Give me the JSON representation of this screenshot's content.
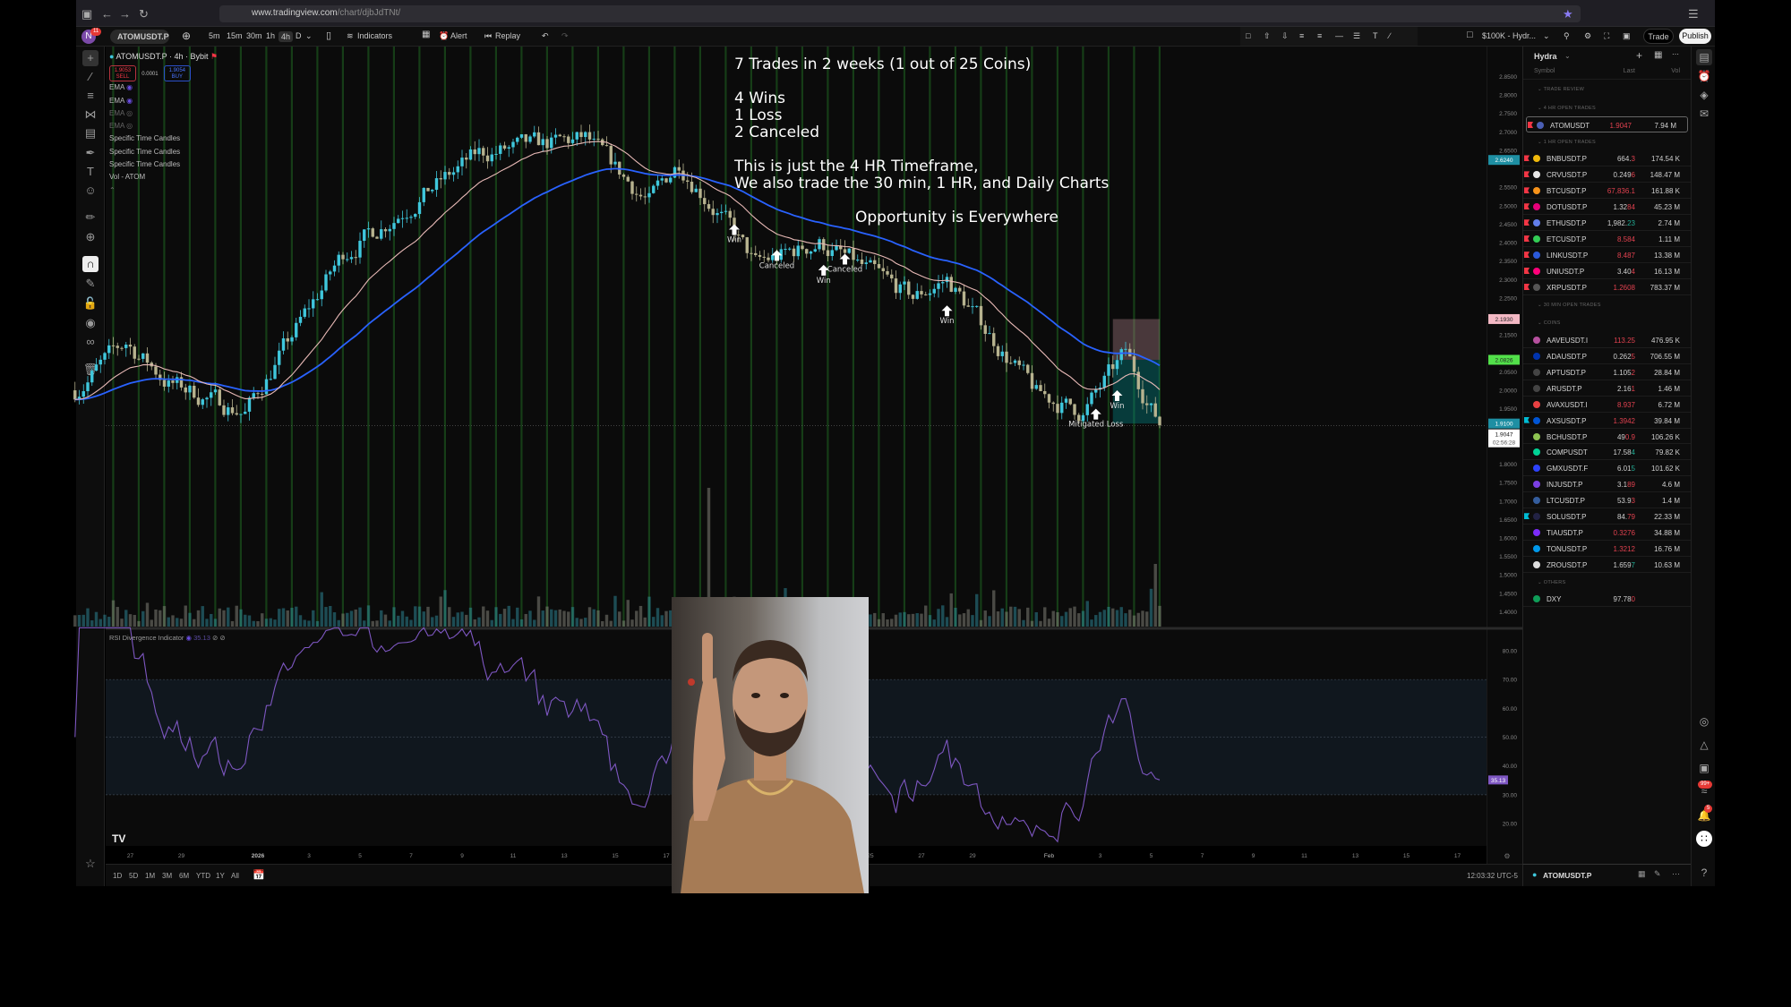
{
  "browser": {
    "url_domain": "www.tradingview.com",
    "url_path": "/chart/djbJdTNt/"
  },
  "toolbar": {
    "avatar_letter": "N",
    "avatar_badge": "11",
    "symbol": "ATOMUSDT.P",
    "timeframes": [
      "5m",
      "15m",
      "30m",
      "1h",
      "4h",
      "D"
    ],
    "active_timeframe": "4h",
    "indicators_label": "Indicators",
    "alert_label": "Alert",
    "replay_label": "Replay",
    "account_label": "$100K - Hydr...",
    "trade_label": "Trade",
    "publish_label": "Publish"
  },
  "legend": {
    "title": "ATOMUSDT.P · 4h · Bybit",
    "sell_price": "1.9053",
    "sell_label": "SELL",
    "spread": "0.0001",
    "buy_price": "1.9054",
    "buy_label": "BUY",
    "indicators": [
      "EMA",
      "EMA",
      "EMA",
      "EMA",
      "Specific Time Candles",
      "Specific Time Candles",
      "Specific Time Candles",
      "Vol - ATOM"
    ]
  },
  "annotations": {
    "line1": "7 Trades in 2 weeks (1 out of 25 Coins)",
    "line2": "4 Wins",
    "line3": "1 Loss",
    "line4": "2 Canceled",
    "line5": "This is just the 4 HR Timeframe,",
    "line6": "We also trade the 30 min, 1 HR, and Daily Charts",
    "line7": "Opportunity is Everywhere"
  },
  "chart_data": {
    "type": "candlestick",
    "symbol": "ATOMUSDT.P",
    "interval": "4h",
    "price_axis": {
      "min": 1.4,
      "max": 2.85,
      "step": 0.05
    },
    "price_path": [
      [
        "2025-12-24T20:00",
        2.0
      ],
      [
        "2025-12-26T20:00",
        2.13
      ],
      [
        "2025-12-28T12:00",
        2.02
      ],
      [
        "2025-12-31T12:00",
        1.94
      ],
      [
        "2026-01-04T08:00",
        2.37
      ],
      [
        "2026-01-09T16:00",
        2.64
      ],
      [
        "2026-01-13T20:00",
        2.68
      ],
      [
        "2026-01-16T08:00",
        2.51
      ],
      [
        "2026-01-17T12:00",
        2.62
      ],
      [
        "2026-01-19T12:00",
        2.44
      ],
      [
        "2026-01-20T12:00",
        2.34
      ],
      [
        "2026-01-23T00:00",
        2.4
      ],
      [
        "2026-01-26T16:00",
        2.25
      ],
      [
        "2026-01-28T00:00",
        2.3
      ],
      [
        "2026-01-31T12:00",
        1.99
      ],
      [
        "2026-02-02T08:00",
        1.94
      ],
      [
        "2026-02-04T00:00",
        2.1
      ],
      [
        "2026-02-05T08:00",
        1.905
      ]
    ],
    "price_labels": [
      {
        "value": "2.6240",
        "color": "#1e8fa3"
      },
      {
        "value": "2.1930",
        "color": "#f3b8c4"
      },
      {
        "value": "2.0826",
        "color": "#52e04a"
      },
      {
        "value": "1.9100",
        "color": "#1e8fa3"
      }
    ],
    "current_price": "1.9047",
    "countdown": "02:56:28",
    "trade_markers": [
      {
        "label": "Win",
        "date": "2026-01-19T16:00",
        "price": 2.45
      },
      {
        "label": "Canceled",
        "date": "2026-01-21T08:00",
        "price": 2.38
      },
      {
        "label": "Win",
        "date": "2026-01-23T04:00",
        "price": 2.34
      },
      {
        "label": "Canceled",
        "date": "2026-01-24T00:00",
        "price": 2.37
      },
      {
        "label": "Win",
        "date": "2026-01-28T00:00",
        "price": 2.23
      },
      {
        "label": "Mitigated Loss",
        "date": "2026-02-02T20:00",
        "price": 1.95
      },
      {
        "label": "Win",
        "date": "2026-02-03T16:00",
        "price": 2.0
      }
    ],
    "position": {
      "start": "2026-02-03T12:00",
      "end": "2026-02-05T08:00",
      "stop": 2.193,
      "entry": 2.0826,
      "target": 1.91
    },
    "ema_colors": {
      "fast": "#e8b9b6",
      "slow": "#2962ff"
    },
    "candle_colors": {
      "up": "#3fc7dc",
      "down": "#b7b38f"
    },
    "x_ticks": [
      {
        "label": "27",
        "date": "2025-12-27"
      },
      {
        "label": "29",
        "date": "2025-12-29"
      },
      {
        "label": "2026",
        "date": "2026-01-01"
      },
      {
        "label": "3",
        "date": "2026-01-03"
      },
      {
        "label": "5",
        "date": "2026-01-05"
      },
      {
        "label": "7",
        "date": "2026-01-07"
      },
      {
        "label": "9",
        "date": "2026-01-09"
      },
      {
        "label": "11",
        "date": "2026-01-11"
      },
      {
        "label": "13",
        "date": "2026-01-13"
      },
      {
        "label": "15",
        "date": "2026-01-15"
      },
      {
        "label": "17",
        "date": "2026-01-17"
      },
      {
        "label": "25",
        "date": "2026-01-25"
      },
      {
        "label": "27",
        "date": "2026-01-27"
      },
      {
        "label": "29",
        "date": "2026-01-29"
      },
      {
        "label": "Feb",
        "date": "2026-02-01"
      },
      {
        "label": "3",
        "date": "2026-02-03"
      },
      {
        "label": "5",
        "date": "2026-02-05"
      },
      {
        "label": "7",
        "date": "2026-02-07"
      },
      {
        "label": "9",
        "date": "2026-02-09"
      },
      {
        "label": "11",
        "date": "2026-02-11"
      },
      {
        "label": "13",
        "date": "2026-02-13"
      },
      {
        "label": "15",
        "date": "2026-02-15"
      },
      {
        "label": "17",
        "date": "2026-02-17"
      }
    ],
    "rsi": {
      "title": "RSI Divergence Indicator",
      "value": "35.13",
      "color": "#7e57c2",
      "axis_ticks": [
        "80.00",
        "70.00",
        "60.00",
        "50.00",
        "40.00",
        "30.00",
        "20.00"
      ],
      "band": [
        30,
        70
      ]
    }
  },
  "bottombar": {
    "ranges": [
      "1D",
      "5D",
      "1M",
      "3M",
      "6M",
      "YTD",
      "1Y",
      "All"
    ],
    "clock": "12:03:32 UTC-5"
  },
  "watchlist": {
    "name": "Hydra",
    "col_symbol": "Symbol",
    "col_last": "Last",
    "col_vol": "Vol",
    "sections": [
      {
        "title": "TRADE REVIEW",
        "items": []
      },
      {
        "title": "4 HR OPEN TRADES",
        "items": [
          {
            "sym": "ATOMUSDT",
            "main": "",
            "chg": "1.9047",
            "chg_color": "#e0414f",
            "vol": "7.94 M",
            "flag": "#f23645",
            "coin": "#4b5fb5",
            "selected": true
          }
        ]
      },
      {
        "title": "1 HR OPEN TRADES",
        "items": [
          {
            "sym": "BNBUSDT.P",
            "main": "664.",
            "chg": "3",
            "chg_color": "#e0414f",
            "vol": "174.54 K",
            "flag": "#f23645",
            "coin": "#f0b90b"
          },
          {
            "sym": "CRVUSDT.P",
            "main": "0.249",
            "chg": "6",
            "chg_color": "#e0414f",
            "vol": "148.47 M",
            "flag": "#f23645",
            "coin": "#e8e8e8"
          },
          {
            "sym": "BTCUSDT.P",
            "main": "",
            "chg": "67,836.1",
            "chg_color": "#e0414f",
            "vol": "161.88 K",
            "flag": "#f23645",
            "coin": "#f7931a"
          },
          {
            "sym": "DOTUSDT.P",
            "main": "1.32",
            "chg": "84",
            "chg_color": "#e0414f",
            "vol": "45.23 M",
            "flag": "#f23645",
            "coin": "#e6007a"
          },
          {
            "sym": "ETHUSDT.P",
            "main": "1,982.",
            "chg": "23",
            "chg_color": "#22ab94",
            "vol": "2.74 M",
            "flag": "#f23645",
            "coin": "#627eea"
          },
          {
            "sym": "ETCUSDT.P",
            "main": "",
            "chg": "8.584",
            "chg_color": "#e0414f",
            "vol": "1.11 M",
            "flag": "#f23645",
            "coin": "#33cc55"
          },
          {
            "sym": "LINKUSDT.P",
            "main": "",
            "chg": "8.487",
            "chg_color": "#e0414f",
            "vol": "13.38 M",
            "flag": "#f23645",
            "coin": "#2a5ada"
          },
          {
            "sym": "UNIUSDT.P",
            "main": "3.40",
            "chg": "4",
            "chg_color": "#e0414f",
            "vol": "16.13 M",
            "flag": "#f23645",
            "coin": "#ff007a"
          },
          {
            "sym": "XRPUSDT.P",
            "main": "",
            "chg": "1.2608",
            "chg_color": "#e0414f",
            "vol": "783.37 M",
            "flag": "#f23645",
            "coin": "#555555"
          }
        ]
      },
      {
        "title": "30 MIN OPEN TRADES",
        "items": []
      },
      {
        "title": "COINS",
        "items": [
          {
            "sym": "AAVEUSDT.I",
            "main": "",
            "chg": "113.25",
            "chg_color": "#e0414f",
            "vol": "476.95 K",
            "coin": "#b6509e"
          },
          {
            "sym": "ADAUSDT.P",
            "main": "0.262",
            "chg": "5",
            "chg_color": "#e0414f",
            "vol": "706.55 M",
            "coin": "#0033ad"
          },
          {
            "sym": "APTUSDT.P",
            "main": "1.105",
            "chg": "2",
            "chg_color": "#e0414f",
            "vol": "28.84 M",
            "coin": "#444444"
          },
          {
            "sym": "ARUSDT.P",
            "main": "2.16",
            "chg": "1",
            "chg_color": "#e0414f",
            "vol": "1.46 M",
            "coin": "#444444"
          },
          {
            "sym": "AVAXUSDT.I",
            "main": "",
            "chg": "8.937",
            "chg_color": "#e0414f",
            "vol": "6.72 M",
            "coin": "#e84142"
          },
          {
            "sym": "AXSUSDT.P",
            "main": "",
            "chg": "1.3942",
            "chg_color": "#e0414f",
            "vol": "39.84 M",
            "flag": "#00bcd4",
            "coin": "#0055d5"
          },
          {
            "sym": "BCHUSDT.P",
            "main": "49",
            "chg": "0.9",
            "chg_color": "#e0414f",
            "vol": "106.26 K",
            "coin": "#8dc351"
          },
          {
            "sym": "COMPUSDT",
            "main": "17.58",
            "chg": "4",
            "chg_color": "#22ab94",
            "vol": "79.82 K",
            "coin": "#00d395"
          },
          {
            "sym": "GMXUSDT.F",
            "main": "6.01",
            "chg": "5",
            "chg_color": "#22ab94",
            "vol": "101.62 K",
            "coin": "#2d42fc"
          },
          {
            "sym": "INJUSDT.P",
            "main": "3.1",
            "chg": "89",
            "chg_color": "#e0414f",
            "vol": "4.6 M",
            "coin": "#7b3fe4"
          },
          {
            "sym": "LTCUSDT.P",
            "main": "53.9",
            "chg": "3",
            "chg_color": "#e0414f",
            "vol": "1.4 M",
            "coin": "#345d9d"
          },
          {
            "sym": "SOLUSDT.P",
            "main": "84.",
            "chg": "79",
            "chg_color": "#e0414f",
            "vol": "22.33 M",
            "flag": "#00bcd4",
            "coin": "#222244"
          },
          {
            "sym": "TIAUSDT.P",
            "main": "",
            "chg": "0.3276",
            "chg_color": "#e0414f",
            "vol": "34.88 M",
            "coin": "#7b2bf9"
          },
          {
            "sym": "TONUSDT.P",
            "main": "",
            "chg": "1.3212",
            "chg_color": "#e0414f",
            "vol": "16.76 M",
            "coin": "#0098ea"
          },
          {
            "sym": "ZROUSDT.P",
            "main": "1.659",
            "chg": "7",
            "chg_color": "#22ab94",
            "vol": "10.63 M",
            "coin": "#dddddd"
          }
        ]
      },
      {
        "title": "OTHERS",
        "items": [
          {
            "sym": "DXY",
            "main": "97.78",
            "chg": "0",
            "chg_color": "#e0414f",
            "vol": "",
            "coin": "#0f9d58"
          }
        ]
      }
    ],
    "footer_symbol": "ATOMUSDT.P"
  },
  "rightbar": {
    "news_badge": "99+",
    "alerts_badge": "5"
  }
}
